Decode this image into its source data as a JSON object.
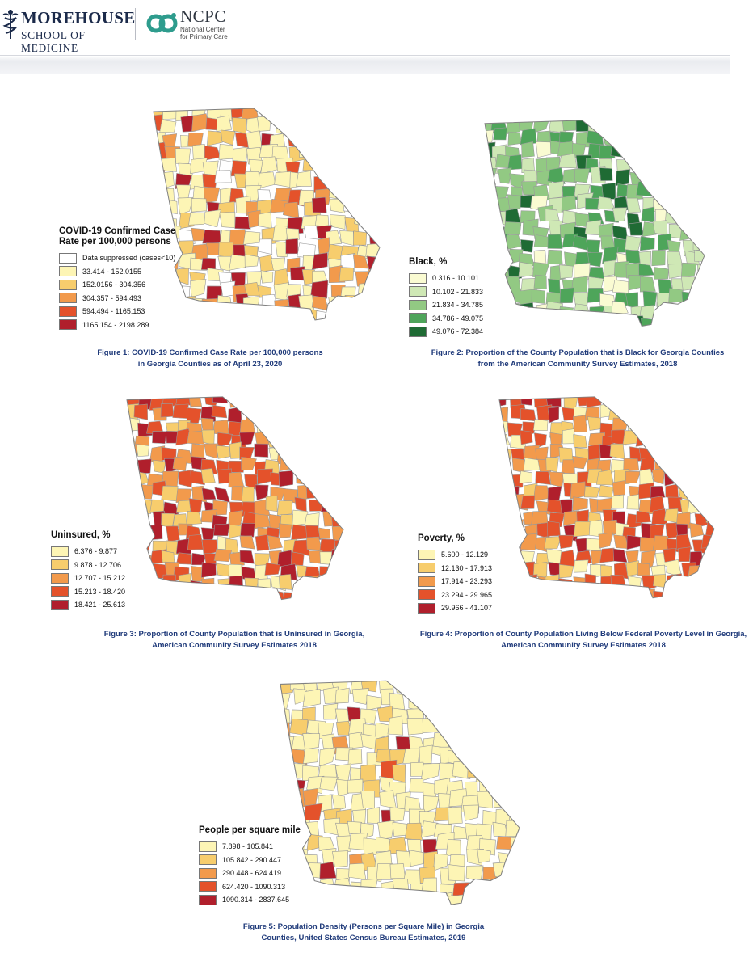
{
  "header": {
    "morehouse_title": "MOREHOUSE",
    "morehouse_subtitle": "SCHOOL OF MEDICINE",
    "ncpc_title": "NCPC",
    "ncpc_line1": "National Center",
    "ncpc_line2": "for Primary Care"
  },
  "figures": [
    {
      "legend_title": "COVID-19 Confirmed Case Rate per 100,000 persons",
      "legend": [
        {
          "label": "Data suppressed (cases<10)",
          "color": "#ffffff"
        },
        {
          "label": "33.414 - 152.0155",
          "color": "#fdf5b5"
        },
        {
          "label": "152.0156 - 304.356",
          "color": "#f7cd6d"
        },
        {
          "label": "304.357 - 594.493",
          "color": "#f29a4c"
        },
        {
          "label": "594.494 - 1165.153",
          "color": "#e4522b"
        },
        {
          "label": "1165.154 - 2198.289",
          "color": "#b01f2c"
        }
      ],
      "caption_line1": "Figure 1: COVID-19 Confirmed Case Rate per 100,000 persons",
      "caption_line2": "in Georgia Counties as of April 23, 2020"
    },
    {
      "legend_title": "Black, %",
      "legend": [
        {
          "label": "0.316 - 10.101",
          "color": "#fafbd2"
        },
        {
          "label": "10.102 - 21.833",
          "color": "#cfe8b5"
        },
        {
          "label": "21.834 - 34.785",
          "color": "#92c983"
        },
        {
          "label": "34.786 - 49.075",
          "color": "#4ea55a"
        },
        {
          "label": "49.076 - 72.384",
          "color": "#1f6b34"
        }
      ],
      "caption_line1": "Figure 2: Proportion of the County Population that is Black for Georgia Counties",
      "caption_line2": "from the American Community Survey Estimates, 2018"
    },
    {
      "legend_title": "Uninsured, %",
      "legend": [
        {
          "label": "6.376 - 9.877",
          "color": "#fdf5b5"
        },
        {
          "label": "9.878 - 12.706",
          "color": "#f7cd6d"
        },
        {
          "label": "12.707 - 15.212",
          "color": "#f29a4c"
        },
        {
          "label": "15.213 - 18.420",
          "color": "#e4522b"
        },
        {
          "label": "18.421 - 25.613",
          "color": "#b01f2c"
        }
      ],
      "caption_line1": "Figure 3: Proportion of County Population that is Uninsured in Georgia,",
      "caption_line2": "American Community Survey Estimates 2018"
    },
    {
      "legend_title": "Poverty, %",
      "legend": [
        {
          "label": "5.600 - 12.129",
          "color": "#fdf5b5"
        },
        {
          "label": "12.130 - 17.913",
          "color": "#f7cd6d"
        },
        {
          "label": "17.914 - 23.293",
          "color": "#f29a4c"
        },
        {
          "label": "23.294 - 29.965",
          "color": "#e4522b"
        },
        {
          "label": "29.966 - 41.107",
          "color": "#b01f2c"
        }
      ],
      "caption_line1": "Figure 4: Proportion of County Population Living Below Federal Poverty Level in Georgia,",
      "caption_line2": "American Community Survey Estimates 2018"
    },
    {
      "legend_title": "People per square mile",
      "legend": [
        {
          "label": "7.898 - 105.841",
          "color": "#fdf5b5"
        },
        {
          "label": "105.842 - 290.447",
          "color": "#f7cd6d"
        },
        {
          "label": "290.448 - 624.419",
          "color": "#f29a4c"
        },
        {
          "label": "624.420 - 1090.313",
          "color": "#e4522b"
        },
        {
          "label": "1090.314 - 2837.645",
          "color": "#b01f2c"
        }
      ],
      "caption_line1": "Figure 5: Population Density (Persons per Square Mile) in Georgia",
      "caption_line2": "Counties, United States Census Bureau Estimates, 2019"
    }
  ]
}
